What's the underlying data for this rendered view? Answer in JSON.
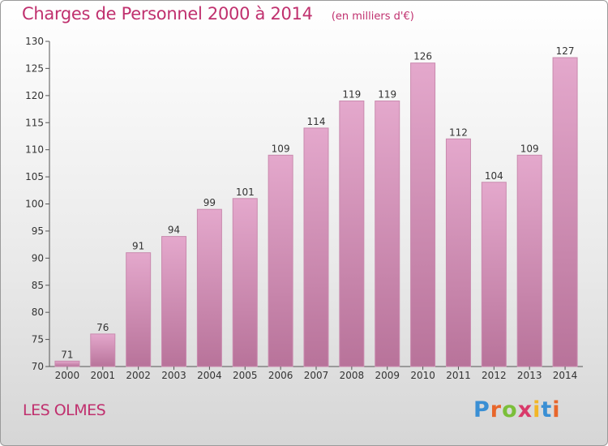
{
  "header": {
    "title": "Charges de Personnel 2000 à 2014",
    "subtitle": "(en milliers d'€)"
  },
  "footer": {
    "place": "LES OLMES",
    "logo_text": "Proxiti",
    "logo_colors": [
      "#3a8fd4",
      "#e8662b",
      "#7bbf3a",
      "#d93a6a",
      "#f2b627",
      "#3a8fd4",
      "#e8662b"
    ]
  },
  "chart_data": {
    "type": "bar",
    "categories": [
      "2000",
      "2001",
      "2002",
      "2003",
      "2004",
      "2005",
      "2006",
      "2007",
      "2008",
      "2009",
      "2010",
      "2011",
      "2012",
      "2013",
      "2014"
    ],
    "values": [
      71,
      76,
      91,
      94,
      99,
      101,
      109,
      114,
      119,
      119,
      126,
      112,
      104,
      109,
      127
    ],
    "ylim": [
      70,
      130
    ],
    "yticks": [
      70,
      75,
      80,
      85,
      90,
      95,
      100,
      105,
      110,
      115,
      120,
      125,
      130
    ],
    "grid": false,
    "colors": {
      "bar_top": "#e4a8cc",
      "bar_bottom": "#b8739a",
      "bar_border": "#c98aae",
      "axis": "#555555",
      "label": "#333333"
    }
  }
}
